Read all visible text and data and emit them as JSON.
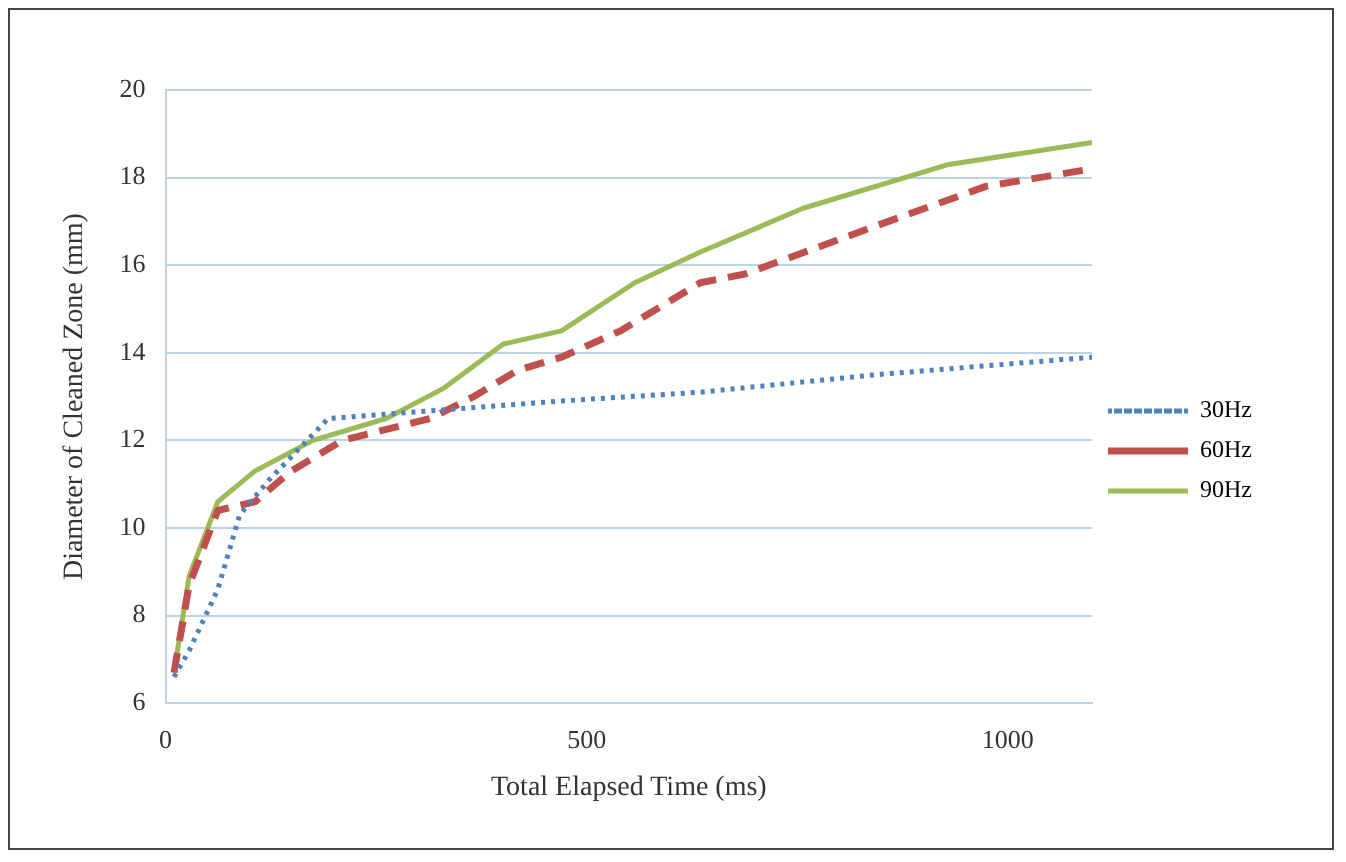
{
  "chart_data": {
    "type": "line",
    "xlabel": "Total Elapsed Time (ms)",
    "ylabel": "Diameter of Cleaned Zone (mm)",
    "xlim": [
      0,
      1100
    ],
    "xticks": [
      0,
      500,
      1000
    ],
    "ylim": [
      6,
      20
    ],
    "yticks": [
      6,
      8,
      10,
      12,
      14,
      16,
      18,
      20
    ],
    "grid": "y",
    "legend": "right",
    "marker": "none",
    "series": [
      {
        "name": "30Hz",
        "color": "#4f81bd",
        "line_style": "dotted",
        "x": [
          10,
          28,
          62,
          88,
          123,
          193,
          262,
          470,
          635,
          844,
          1100
        ],
        "values": [
          6.6,
          7.2,
          8.6,
          10.3,
          11.1,
          12.5,
          12.6,
          12.9,
          13.1,
          13.5,
          13.9
        ]
      },
      {
        "name": "60Hz",
        "color": "#c0504d",
        "line_style": "dashed",
        "x": [
          10,
          28,
          62,
          106,
          149,
          210,
          262,
          314,
          366,
          418,
          470,
          540,
          635,
          688,
          844,
          974,
          1100
        ],
        "values": [
          6.7,
          8.7,
          10.4,
          10.6,
          11.3,
          12.0,
          12.25,
          12.5,
          13.0,
          13.6,
          13.9,
          14.5,
          15.6,
          15.8,
          16.9,
          17.8,
          18.2
        ]
      },
      {
        "name": "90Hz",
        "color": "#9bbb59",
        "line_style": "solid",
        "x": [
          10,
          28,
          62,
          106,
          175,
          262,
          331,
          401,
          470,
          557,
          635,
          757,
          930,
          1100
        ],
        "values": [
          6.7,
          8.9,
          10.6,
          11.3,
          12.0,
          12.5,
          13.2,
          14.2,
          14.5,
          15.6,
          16.3,
          17.3,
          18.3,
          18.8
        ]
      }
    ]
  }
}
